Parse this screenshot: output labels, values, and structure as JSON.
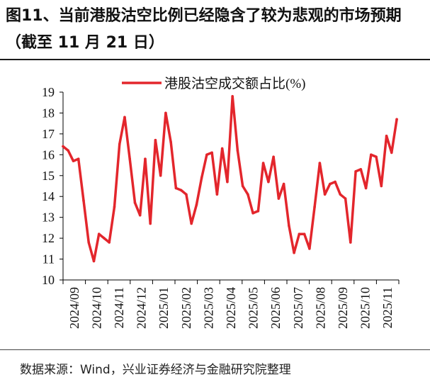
{
  "figure": {
    "title": "图11、当前港股沽空比例已经隐含了较为悲观的市场预期（截至 11 月 21 日）",
    "source": "数据来源：Wind，兴业证券经济与金融研究院整理"
  },
  "colors": {
    "series": "#e3262c",
    "axis": "#000000",
    "text": "#111111"
  },
  "chart_data": {
    "type": "line",
    "title": "",
    "xlabel": "",
    "ylabel": "",
    "ylim": [
      10,
      19
    ],
    "yticks": [
      "10",
      "11",
      "12",
      "13",
      "14",
      "15",
      "16",
      "17",
      "18",
      "19"
    ],
    "xticks": [
      "2024/09",
      "2024/10",
      "2024/11",
      "2024/12",
      "2025/01",
      "2025/02",
      "2025/03",
      "2025/04",
      "2025/05",
      "2025/06",
      "2025/07",
      "2025/08",
      "2025/09",
      "2025/10",
      "2025/11"
    ],
    "grid": false,
    "legend_position": "top-center",
    "series": [
      {
        "name": "港股沽空成交额占比(%)",
        "values": [
          16.4,
          16.2,
          15.7,
          15.8,
          13.8,
          11.8,
          10.9,
          12.2,
          12.0,
          11.8,
          13.5,
          16.5,
          17.8,
          15.8,
          13.7,
          13.1,
          15.8,
          12.7,
          16.7,
          15.0,
          18.0,
          16.6,
          14.4,
          14.3,
          14.1,
          12.7,
          13.6,
          14.9,
          16.0,
          16.1,
          14.1,
          16.3,
          14.7,
          18.8,
          16.2,
          14.5,
          14.1,
          13.2,
          13.3,
          15.6,
          14.7,
          15.9,
          13.9,
          14.6,
          12.6,
          11.3,
          12.2,
          12.2,
          11.5,
          13.5,
          15.6,
          14.1,
          14.6,
          14.7,
          14.1,
          13.9,
          11.8,
          15.2,
          15.3,
          14.4,
          16.0,
          15.9,
          14.5,
          16.9,
          16.1,
          17.7
        ]
      }
    ]
  }
}
